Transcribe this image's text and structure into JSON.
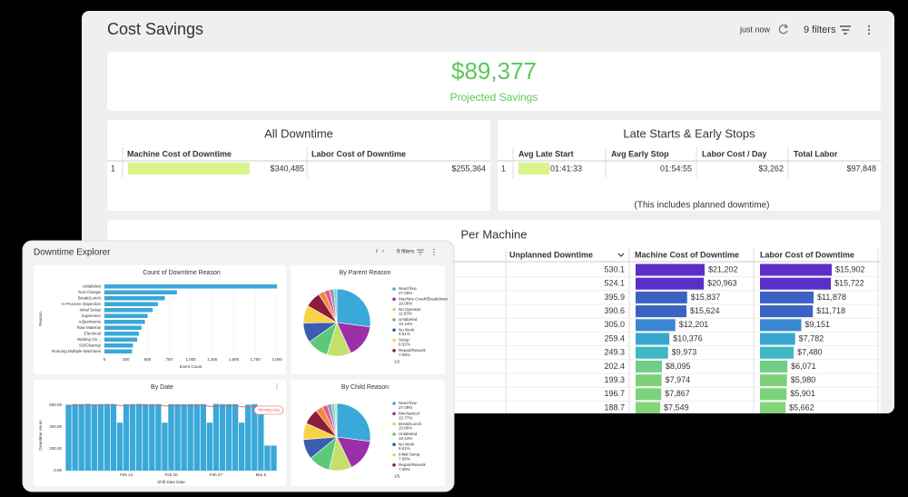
{
  "header": {
    "title": "Cost Savings",
    "updated": "just now",
    "filters": "9 filters"
  },
  "projected": {
    "value": "$89,377",
    "label": "Projected Savings"
  },
  "all_downtime": {
    "title": "All Downtime",
    "columns": [
      "Machine Cost of Downtime",
      "Labor Cost of Downtime"
    ],
    "rows": [
      {
        "index": "1",
        "machine_cost": 340485,
        "machine_cost_label": "$340,485",
        "labor_cost": "$255,364"
      }
    ]
  },
  "late": {
    "title": "Late Starts & Early Stops",
    "columns": [
      "Avg Late Start",
      "Avg Early Stop",
      "Labor Cost / Day",
      "Total Labor"
    ],
    "rows": [
      {
        "index": "1",
        "avg_late_start": "01:41:33",
        "avg_early_stop": "01:54:55",
        "labor_cost_day": "$3,262",
        "total_labor": "$97,848"
      }
    ],
    "note": "(This includes planned downtime)"
  },
  "per_machine": {
    "title": "Per Machine",
    "columns": [
      "Unplanned Downtime",
      "Machine Cost of Downtime",
      "Labor Cost of Downtime"
    ],
    "rows": [
      {
        "downtime": "530.1",
        "machine_cost": 21202,
        "machine_cost_label": "$21,202",
        "labor_cost": 15902,
        "labor_cost_label": "$15,902",
        "color": "#5b2ec9"
      },
      {
        "downtime": "524.1",
        "machine_cost": 20963,
        "machine_cost_label": "$20,963",
        "labor_cost": 15722,
        "labor_cost_label": "$15,722",
        "color": "#5b2ec9"
      },
      {
        "downtime": "395.9",
        "machine_cost": 15837,
        "machine_cost_label": "$15,837",
        "labor_cost": 11878,
        "labor_cost_label": "$11,878",
        "color": "#3c63c4"
      },
      {
        "downtime": "390.6",
        "machine_cost": 15624,
        "machine_cost_label": "$15,624",
        "labor_cost": 11718,
        "labor_cost_label": "$11,718",
        "color": "#3c63c4"
      },
      {
        "downtime": "305.0",
        "machine_cost": 12201,
        "machine_cost_label": "$12,201",
        "labor_cost": 9151,
        "labor_cost_label": "$9,151",
        "color": "#3a86d2"
      },
      {
        "downtime": "259.4",
        "machine_cost": 10376,
        "machine_cost_label": "$10,376",
        "labor_cost": 7782,
        "labor_cost_label": "$7,782",
        "color": "#38a7cf"
      },
      {
        "downtime": "249.3",
        "machine_cost": 9973,
        "machine_cost_label": "$9,973",
        "labor_cost": 7480,
        "labor_cost_label": "$7,480",
        "color": "#3fb8c4"
      },
      {
        "downtime": "202.4",
        "machine_cost": 8095,
        "machine_cost_label": "$8,095",
        "labor_cost": 6071,
        "labor_cost_label": "$6,071",
        "color": "#6fcf86"
      },
      {
        "downtime": "199.3",
        "machine_cost": 7974,
        "machine_cost_label": "$7,974",
        "labor_cost": 5980,
        "labor_cost_label": "$5,980",
        "color": "#7dd17a"
      },
      {
        "downtime": "196.7",
        "machine_cost": 7867,
        "machine_cost_label": "$7,867",
        "labor_cost": 5901,
        "labor_cost_label": "$5,901",
        "color": "#7dd17a"
      },
      {
        "downtime": "188.7",
        "machine_cost": 7549,
        "machine_cost_label": "$7,549",
        "labor_cost": 5662,
        "labor_cost_label": "$5,662",
        "color": "#84d47a"
      }
    ]
  },
  "explorer": {
    "title": "Downtime Explorer",
    "filters": "9 filters",
    "reasons": {
      "type": "bar",
      "title": "Count of Downtime Reason",
      "xlabel": "Event Count",
      "ylabel": "Reason",
      "color": "#3aa8d8",
      "categories": [
        "Unlabeled",
        "Tool Change",
        "Break/Lunch",
        "In Process Inspection",
        "Initial Setup",
        "Supervisor",
        "Adjustments",
        "Raw Material",
        "Electrical",
        "Waiting On...",
        "SS/Cleanup",
        "Running Multiple Machines"
      ],
      "values": [
        2000,
        840,
        700,
        620,
        560,
        500,
        470,
        430,
        400,
        380,
        330,
        320
      ],
      "xlim": [
        0,
        2000
      ],
      "xticks": [
        0,
        250,
        500,
        750,
        {
          "value": 1000,
          "label": "1,000"
        },
        {
          "value": 1250,
          "label": "1,250"
        },
        {
          "value": 1500,
          "label": "1,500"
        },
        {
          "value": 1750,
          "label": "1,750"
        },
        {
          "value": 2000,
          "label": "2,000"
        }
      ]
    },
    "parent": {
      "type": "pie",
      "title": "By Parent Reason",
      "page": "1/2",
      "labels": [
        "Need fixw",
        "Machine Crash/Breakdown",
        "No Operator",
        "Unlabeled",
        "No Work",
        "Setup",
        "Repair/Rework",
        null,
        null,
        null,
        null
      ],
      "values": [
        27.09,
        16.06,
        11.63,
        10.44,
        9.61,
        8.52,
        7.59,
        3.0,
        2.5,
        2.0,
        1.56
      ],
      "value_labels": [
        "27.09%",
        "16.06%",
        "11.63%",
        "10.44%",
        "9.61%",
        "8.52%",
        "7.59%",
        null,
        null,
        null,
        null
      ],
      "colors": [
        "#3aa8d8",
        "#9c2fa8",
        "#c4e06a",
        "#5cc878",
        "#3a5db0",
        "#f5d547",
        "#8e1b3a",
        "#f08a3c",
        "#e9579a",
        "#9a9a9a",
        "#6fd3e8"
      ]
    },
    "dates": {
      "type": "bar",
      "title": "By Date",
      "xlabel": "Shift Date Date",
      "ylabel": "Downtime Hours",
      "color": "#3aa8d8",
      "annotation": "Moving Avg",
      "categories": [
        null,
        null,
        null,
        null,
        null,
        null,
        null,
        null,
        null,
        "Feb 13",
        null,
        null,
        null,
        null,
        null,
        null,
        "Feb 20",
        null,
        null,
        null,
        null,
        null,
        null,
        "Feb 27",
        null,
        null,
        null,
        null,
        null,
        null,
        "Mar 6",
        null,
        null
      ],
      "values": [
        605,
        610,
        610,
        612,
        608,
        610,
        610,
        610,
        440,
        610,
        610,
        612,
        610,
        610,
        610,
        440,
        610,
        610,
        608,
        610,
        610,
        610,
        440,
        612,
        610,
        610,
        610,
        440,
        605,
        610,
        560,
        230,
        230
      ],
      "moving_avg": {
        "name": "Moving Avg",
        "color": "#e06050",
        "values": [
          600,
          600,
          602,
          603,
          604,
          605,
          606,
          607,
          595,
          597,
          598,
          599,
          600,
          601,
          602,
          592,
          593,
          594,
          596,
          597,
          598,
          599,
          589,
          590,
          592,
          594,
          595,
          585,
          586,
          588,
          584,
          560,
          540
        ]
      },
      "ylim": [
        0,
        650
      ],
      "yticks": [
        {
          "value": 0,
          "label": "0.00"
        },
        {
          "value": 200,
          "label": "200.00"
        },
        {
          "value": 400,
          "label": "400.00"
        },
        {
          "value": 600,
          "label": "600.00"
        }
      ]
    },
    "child": {
      "type": "pie",
      "title": "By Child Reason",
      "page": "1/5",
      "labels": [
        "Need fixw",
        "Mechanical",
        "Break/Lunch",
        "Unlabeled",
        "No Work",
        "Initial Setup",
        "Repair/Rework",
        null,
        null,
        null,
        null,
        null
      ],
      "values": [
        27.09,
        15.77,
        10.86,
        10.44,
        9.61,
        7.99,
        7.59,
        3.5,
        2.5,
        2.0,
        1.5,
        1.15
      ],
      "value_labels": [
        "27.09%",
        "15.77%",
        "10.86%",
        "10.44%",
        "9.61%",
        "7.99%",
        "7.59%",
        null,
        null,
        null,
        null,
        null
      ],
      "colors": [
        "#3aa8d8",
        "#9c2fa8",
        "#c4e06a",
        "#5cc878",
        "#3a5db0",
        "#f5d547",
        "#8e1b3a",
        "#f08a3c",
        "#e9579a",
        "#9a9a9a",
        "#6fd3e8",
        "#b6e3a0"
      ]
    }
  }
}
